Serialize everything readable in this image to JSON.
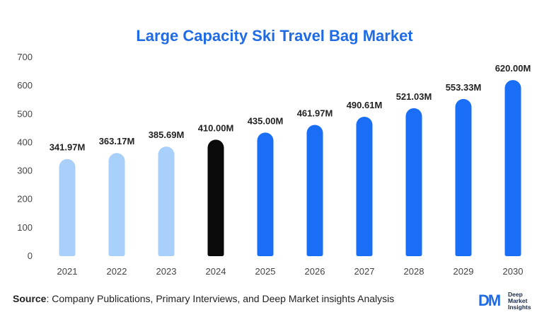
{
  "chart_data": {
    "type": "bar",
    "title": "Large Capacity Ski Travel Bag Market",
    "categories": [
      "2021",
      "2022",
      "2023",
      "2024",
      "2025",
      "2026",
      "2027",
      "2028",
      "2029",
      "2030"
    ],
    "values": [
      341.97,
      363.17,
      385.69,
      410.0,
      435.0,
      461.97,
      490.61,
      521.03,
      553.33,
      620.0
    ],
    "data_labels": [
      "341.97M",
      "363.17M",
      "385.69M",
      "410.00M",
      "435.00M",
      "461.97M",
      "490.61M",
      "521.03M",
      "553.33M",
      "620.00M"
    ],
    "bar_colors": [
      "#a8d0fb",
      "#a8d0fb",
      "#a8d0fb",
      "#0a0a0a",
      "#1a6ef5",
      "#1a6ef5",
      "#1a6ef5",
      "#1a6ef5",
      "#1a6ef5",
      "#1a6ef5"
    ],
    "yticks": [
      0,
      100,
      200,
      300,
      400,
      500,
      600,
      700
    ],
    "ylim": [
      0,
      700
    ],
    "xlabel": "",
    "ylabel": "",
    "grid": false
  },
  "colors": {
    "title": "#1f6be6"
  },
  "source": {
    "label": "Source",
    "text": ": Company Publications, Primary Interviews, and Deep Market insights Analysis"
  },
  "logo": {
    "mark": "DM",
    "line1": "Deep",
    "line2": "Market",
    "line3": "Insights"
  }
}
